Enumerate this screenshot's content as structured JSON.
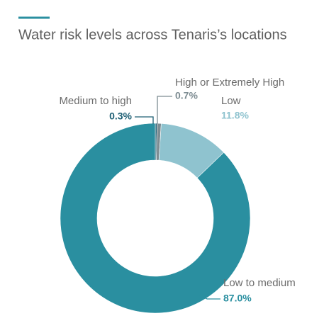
{
  "chart_data": {
    "type": "donut",
    "title": "Water risk levels across Tenaris’s locations",
    "categories": [
      "Medium to high",
      "High or Extremely High",
      "Low",
      "Low to medium"
    ],
    "values": [
      0.3,
      0.7,
      11.8,
      87.0
    ],
    "value_labels": [
      "0.3%",
      "0.7%",
      "11.8%",
      "87.0%"
    ],
    "colors": [
      "#1d5f74",
      "#7d8c92",
      "#8fc3cf",
      "#2a8fa0"
    ]
  }
}
